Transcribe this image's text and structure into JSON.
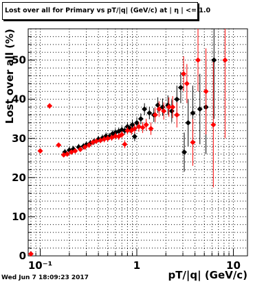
{
  "chart_data": {
    "type": "scatter",
    "title": "Lost over all for Primary vs pT/|q| (GeV/c) at | η | <= 1.0",
    "xlabel": "pT/|q| (GeV/c)",
    "ylabel": "Lost over all (%)",
    "x_scale": "log",
    "xlim": [
      0.075,
      14
    ],
    "ylim": [
      0,
      58
    ],
    "x_ticks": [
      {
        "v": 0.1,
        "label": "10⁻¹"
      },
      {
        "v": 1,
        "label": "1"
      },
      {
        "v": 10,
        "label": "10"
      }
    ],
    "y_ticks": [
      0,
      10,
      20,
      30,
      40,
      50
    ],
    "grid": true,
    "timestamp": "Wed Jun  7 18:09:23 2017",
    "series": [
      {
        "color": "#000000",
        "marker": "diamond",
        "points": [
          {
            "x": 0.18,
            "y": 26.5,
            "ey": 0.8
          },
          {
            "x": 0.2,
            "y": 27.0,
            "ey": 0.8
          },
          {
            "x": 0.22,
            "y": 27.3,
            "ey": 0.8
          },
          {
            "x": 0.25,
            "y": 27.8,
            "ey": 0.8
          },
          {
            "x": 0.28,
            "y": 28.0,
            "ey": 0.8
          },
          {
            "x": 0.3,
            "y": 28.4,
            "ey": 0.8
          },
          {
            "x": 0.33,
            "y": 28.8,
            "ey": 0.8
          },
          {
            "x": 0.36,
            "y": 29.2,
            "ey": 0.8
          },
          {
            "x": 0.4,
            "y": 29.8,
            "ey": 0.8
          },
          {
            "x": 0.44,
            "y": 30.1,
            "ey": 0.9
          },
          {
            "x": 0.48,
            "y": 30.6,
            "ey": 0.9
          },
          {
            "x": 0.52,
            "y": 30.5,
            "ey": 0.9
          },
          {
            "x": 0.56,
            "y": 31.2,
            "ey": 0.9
          },
          {
            "x": 0.6,
            "y": 31.5,
            "ey": 1.0
          },
          {
            "x": 0.65,
            "y": 31.8,
            "ey": 1.0
          },
          {
            "x": 0.7,
            "y": 32.2,
            "ey": 1.0
          },
          {
            "x": 0.75,
            "y": 32.0,
            "ey": 1.0
          },
          {
            "x": 0.8,
            "y": 33.0,
            "ey": 1.1
          },
          {
            "x": 0.85,
            "y": 32.5,
            "ey": 1.1
          },
          {
            "x": 0.9,
            "y": 33.5,
            "ey": 1.2
          },
          {
            "x": 0.95,
            "y": 30.5,
            "ey": 1.2
          },
          {
            "x": 1.0,
            "y": 34.0,
            "ey": 1.3
          },
          {
            "x": 1.1,
            "y": 35.0,
            "ey": 1.4
          },
          {
            "x": 1.2,
            "y": 37.5,
            "ey": 1.5
          },
          {
            "x": 1.35,
            "y": 36.5,
            "ey": 1.6
          },
          {
            "x": 1.5,
            "y": 36.0,
            "ey": 1.8
          },
          {
            "x": 1.65,
            "y": 38.5,
            "ey": 2.0
          },
          {
            "x": 1.85,
            "y": 38.0,
            "ey": 2.2
          },
          {
            "x": 2.1,
            "y": 38.5,
            "ey": 2.5
          },
          {
            "x": 2.3,
            "y": 37.0,
            "ey": 2.8
          },
          {
            "x": 2.6,
            "y": 40.0,
            "ey": 3.5
          },
          {
            "x": 2.85,
            "y": 43.0,
            "ey": 4.0
          },
          {
            "x": 3.1,
            "y": 26.5,
            "ey": 5.0
          },
          {
            "x": 3.4,
            "y": 34.0,
            "ey": 6.0
          },
          {
            "x": 3.8,
            "y": 36.5,
            "ey": 7.0
          },
          {
            "x": 4.5,
            "y": 37.5,
            "ey": 9.0
          },
          {
            "x": 5.2,
            "y": 38.0,
            "ey": 12.0
          },
          {
            "x": 6.3,
            "y": 50.0,
            "ey": 15.0
          }
        ]
      },
      {
        "color": "#ff0000",
        "marker": "diamond",
        "points": [
          {
            "x": 0.08,
            "y": 0.5,
            "ey": 0.5
          },
          {
            "x": 0.1,
            "y": 26.8,
            "ey": 0.6
          },
          {
            "x": 0.125,
            "y": 38.3,
            "ey": 0.7
          },
          {
            "x": 0.155,
            "y": 28.3,
            "ey": 0.6
          },
          {
            "x": 0.175,
            "y": 25.8,
            "ey": 0.6
          },
          {
            "x": 0.19,
            "y": 26.0,
            "ey": 0.6
          },
          {
            "x": 0.21,
            "y": 26.5,
            "ey": 0.6
          },
          {
            "x": 0.23,
            "y": 26.8,
            "ey": 0.6
          },
          {
            "x": 0.26,
            "y": 27.2,
            "ey": 0.6
          },
          {
            "x": 0.29,
            "y": 27.8,
            "ey": 0.7
          },
          {
            "x": 0.32,
            "y": 28.3,
            "ey": 0.7
          },
          {
            "x": 0.35,
            "y": 29.0,
            "ey": 0.7
          },
          {
            "x": 0.38,
            "y": 29.3,
            "ey": 0.7
          },
          {
            "x": 0.42,
            "y": 29.5,
            "ey": 0.7
          },
          {
            "x": 0.46,
            "y": 29.8,
            "ey": 0.8
          },
          {
            "x": 0.5,
            "y": 30.0,
            "ey": 0.8
          },
          {
            "x": 0.55,
            "y": 30.2,
            "ey": 0.8
          },
          {
            "x": 0.6,
            "y": 30.6,
            "ey": 0.9
          },
          {
            "x": 0.65,
            "y": 30.5,
            "ey": 0.9
          },
          {
            "x": 0.7,
            "y": 31.0,
            "ey": 0.9
          },
          {
            "x": 0.75,
            "y": 28.5,
            "ey": 1.0
          },
          {
            "x": 0.8,
            "y": 32.0,
            "ey": 1.0
          },
          {
            "x": 0.88,
            "y": 32.0,
            "ey": 1.1
          },
          {
            "x": 0.95,
            "y": 32.5,
            "ey": 1.2
          },
          {
            "x": 1.05,
            "y": 33.0,
            "ey": 1.3
          },
          {
            "x": 1.15,
            "y": 32.8,
            "ey": 1.4
          },
          {
            "x": 1.25,
            "y": 33.5,
            "ey": 1.5
          },
          {
            "x": 1.4,
            "y": 32.5,
            "ey": 1.6
          },
          {
            "x": 1.55,
            "y": 36.0,
            "ey": 1.8
          },
          {
            "x": 1.7,
            "y": 37.5,
            "ey": 2.0
          },
          {
            "x": 1.9,
            "y": 37.0,
            "ey": 2.2
          },
          {
            "x": 2.15,
            "y": 38.0,
            "ey": 2.5
          },
          {
            "x": 2.35,
            "y": 38.0,
            "ey": 2.8
          },
          {
            "x": 2.6,
            "y": 36.0,
            "ey": 3.2
          },
          {
            "x": 3.05,
            "y": 46.5,
            "ey": 4.5
          },
          {
            "x": 3.3,
            "y": 44.0,
            "ey": 5.0
          },
          {
            "x": 3.8,
            "y": 29.0,
            "ey": 6.0
          },
          {
            "x": 4.3,
            "y": 50.0,
            "ey": 8.0
          },
          {
            "x": 5.2,
            "y": 42.0,
            "ey": 11.0
          },
          {
            "x": 6.2,
            "y": 33.5,
            "ey": 16.0
          },
          {
            "x": 8.2,
            "y": 50.0,
            "ey": 20.0
          }
        ]
      }
    ]
  }
}
